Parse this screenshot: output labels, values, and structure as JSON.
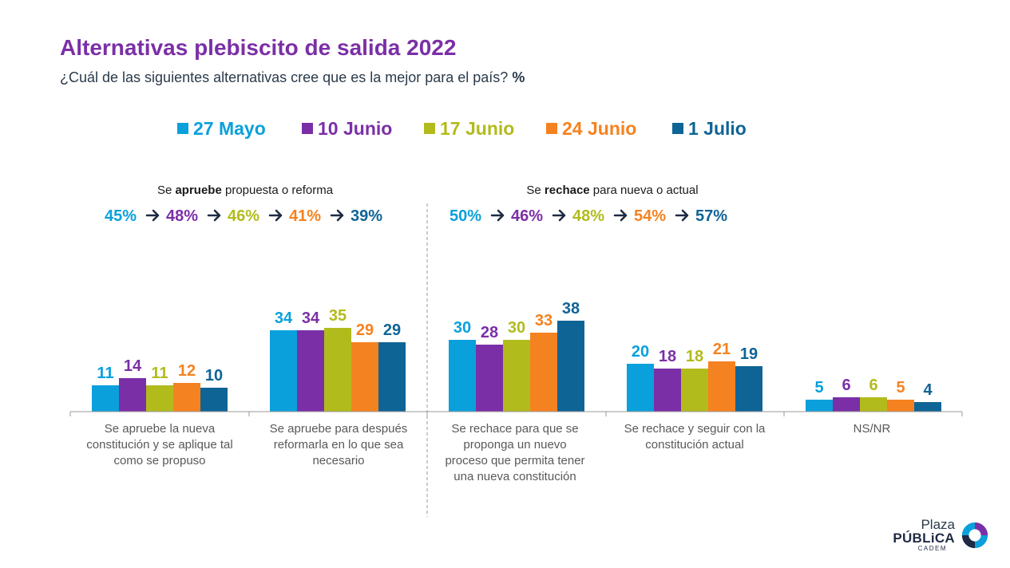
{
  "title": "Alternativas plebiscito de salida 2022",
  "subtitle": {
    "text": "¿Cuál de las siguientes alternativas cree que es la mejor para el país?",
    "unit": "%"
  },
  "colors": {
    "title": "#7b2fa6",
    "text": "#2b3a4a",
    "series": [
      "#0aa0dc",
      "#7b2fa6",
      "#b2bb1c",
      "#f58220",
      "#0f6496"
    ],
    "arrow": "#1f2a44"
  },
  "groups": [
    {
      "label_parts": [
        {
          "text": "Se ",
          "bold": false
        },
        {
          "text": "apruebe",
          "bold": true
        },
        {
          "text": " propuesta o reforma",
          "bold": false
        }
      ],
      "totals": [
        "45%",
        "48%",
        "46%",
        "41%",
        "39%"
      ]
    },
    {
      "label_parts": [
        {
          "text": "Se ",
          "bold": false
        },
        {
          "text": "rechace",
          "bold": true
        },
        {
          "text": " para nueva o actual",
          "bold": false
        }
      ],
      "totals": [
        "50%",
        "46%",
        "48%",
        "54%",
        "57%"
      ]
    }
  ],
  "logo": {
    "line1": "Plaza",
    "line2": "PÚBLiCA",
    "line3": "CADEM",
    "icon": "swirl-logo-icon"
  },
  "chart_data": {
    "type": "bar",
    "title": "Alternativas plebiscito de salida 2022",
    "legend_position": "top",
    "grid": false,
    "ylim": [
      0,
      40
    ],
    "categories": [
      [
        "Se apruebe la nueva",
        "constitución y se aplique tal",
        "como se propuso"
      ],
      [
        "Se apruebe para después",
        "reformarla en lo que sea",
        "necesario"
      ],
      [
        "Se rechace para que se",
        "proponga un nuevo",
        "proceso que permita tener",
        "una nueva constitución"
      ],
      [
        "Se rechace y seguir con la",
        "constitución actual"
      ],
      [
        "NS/NR"
      ]
    ],
    "series": [
      {
        "name": "27 Mayo",
        "values": [
          11,
          34,
          30,
          20,
          5
        ]
      },
      {
        "name": "10 Junio",
        "values": [
          14,
          34,
          28,
          18,
          6
        ]
      },
      {
        "name": "17 Junio",
        "values": [
          11,
          35,
          30,
          18,
          6
        ]
      },
      {
        "name": "24 Junio",
        "values": [
          12,
          29,
          33,
          21,
          5
        ]
      },
      {
        "name": "1 Julio",
        "values": [
          10,
          29,
          38,
          19,
          4
        ]
      }
    ]
  }
}
